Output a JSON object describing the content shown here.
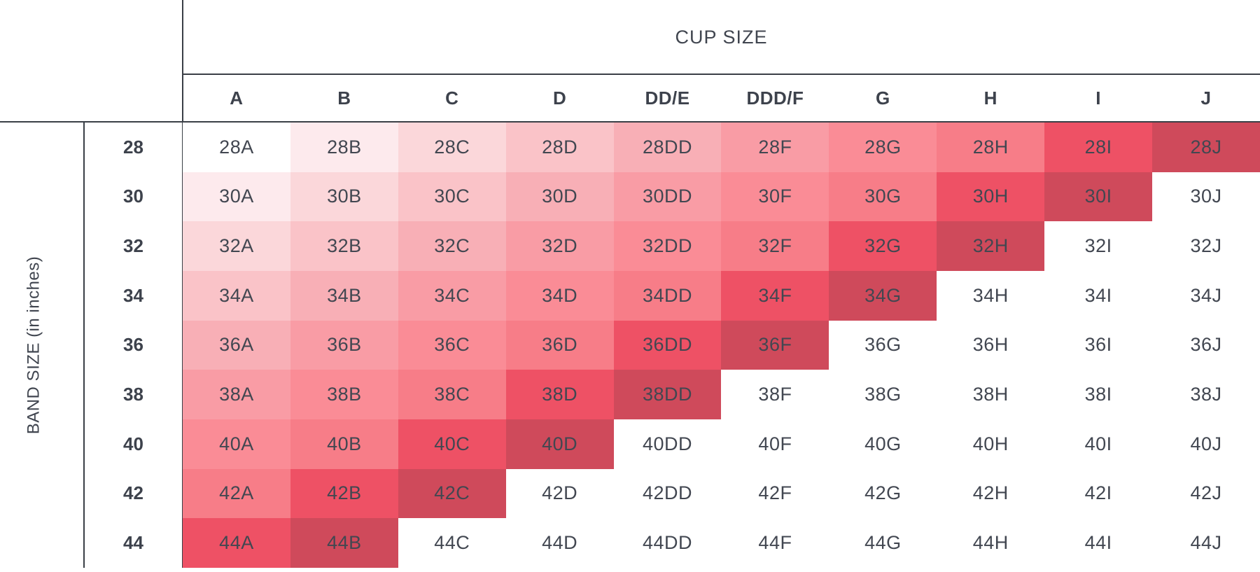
{
  "chart_data": {
    "type": "heatmap",
    "x_axis_label": "CUP SIZE",
    "y_axis_label": "BAND SIZE (in inches)",
    "columns": [
      "A",
      "B",
      "C",
      "D",
      "DD/E",
      "DDD/F",
      "G",
      "H",
      "I",
      "J"
    ],
    "rows": [
      "28",
      "30",
      "32",
      "34",
      "36",
      "38",
      "40",
      "42",
      "44"
    ],
    "cells": [
      [
        "28A",
        "28B",
        "28C",
        "28D",
        "28DD",
        "28F",
        "28G",
        "28H",
        "28I",
        "28J"
      ],
      [
        "30A",
        "30B",
        "30C",
        "30D",
        "30DD",
        "30F",
        "30G",
        "30H",
        "30I",
        "30J"
      ],
      [
        "32A",
        "32B",
        "32C",
        "32D",
        "32DD",
        "32F",
        "32G",
        "32H",
        "32I",
        "32J"
      ],
      [
        "34A",
        "34B",
        "34C",
        "34D",
        "34DD",
        "34F",
        "34G",
        "34H",
        "34I",
        "34J"
      ],
      [
        "36A",
        "36B",
        "36C",
        "36D",
        "36DD",
        "36F",
        "36G",
        "36H",
        "36I",
        "36J"
      ],
      [
        "38A",
        "38B",
        "38C",
        "38D",
        "38DD",
        "38F",
        "38G",
        "38H",
        "38I",
        "38J"
      ],
      [
        "40A",
        "40B",
        "40C",
        "40D",
        "40DD",
        "40F",
        "40G",
        "40H",
        "40I",
        "40J"
      ],
      [
        "42A",
        "42B",
        "42C",
        "42D",
        "42DD",
        "42F",
        "42G",
        "42H",
        "42I",
        "42J"
      ],
      [
        "44A",
        "44B",
        "44C",
        "44D",
        "44DD",
        "44F",
        "44G",
        "44H",
        "44I",
        "44J"
      ]
    ],
    "color_scale": [
      "#ffffff",
      "#fdeaed",
      "#fbd7da",
      "#fac3c8",
      "#f8afb6",
      "#f99ca5",
      "#fa8c96",
      "#f77d88",
      "#ee5165",
      "#cf4a5b"
    ],
    "color_rule": "sister-size diagonal shading: color_scale index = row_index + column_index; sums greater than 9 render white",
    "legend": "none",
    "grid_lines": "off"
  },
  "ink": {
    "text_color": "#40454f",
    "line_color": "#3a3f46"
  }
}
